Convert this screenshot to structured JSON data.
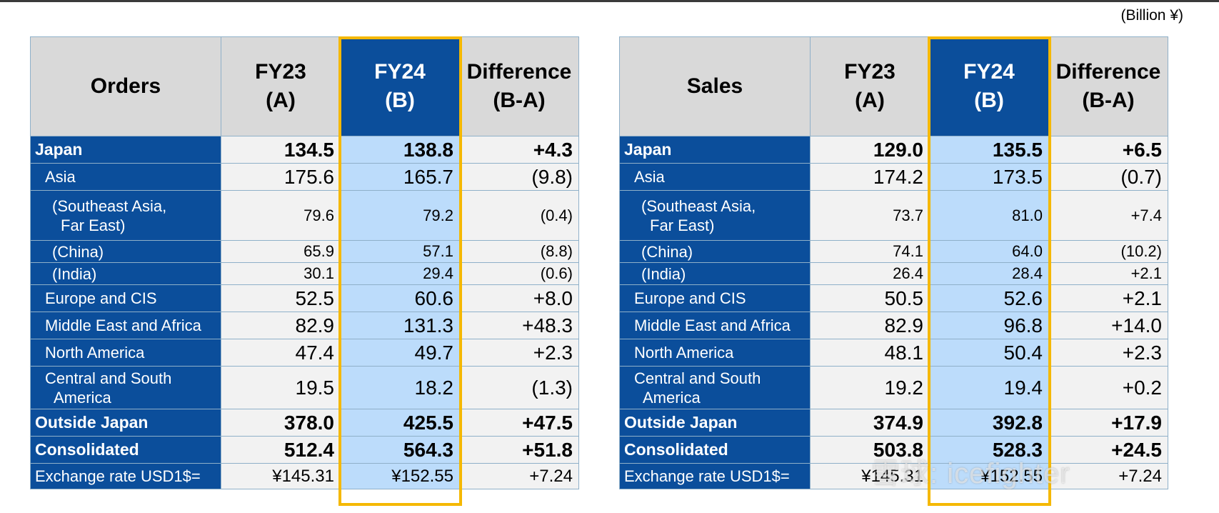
{
  "unit_label": "(Billion ¥)",
  "orders": {
    "header": [
      "Orders",
      "FY23\n(A)",
      "FY24\n(B)",
      "Difference\n(B-A)"
    ],
    "header_lines": [
      [
        "Orders"
      ],
      [
        "FY23",
        "(A)"
      ],
      [
        "FY24",
        "(B)"
      ],
      [
        "Difference",
        "(B-A)"
      ]
    ],
    "rows": [
      {
        "label": "Japan",
        "a": "134.5",
        "b": "138.8",
        "d": "+4.3"
      },
      {
        "label": "Asia",
        "a": "175.6",
        "b": "165.7",
        "d": "(9.8)"
      },
      {
        "label": "(Southeast Asia,\nFar East)",
        "a": "79.6",
        "b": "79.2",
        "d": "(0.4)"
      },
      {
        "label": "(China)",
        "a": "65.9",
        "b": "57.1",
        "d": "(8.8)"
      },
      {
        "label": "(India)",
        "a": "30.1",
        "b": "29.4",
        "d": "(0.6)"
      },
      {
        "label": "Europe and CIS",
        "a": "52.5",
        "b": "60.6",
        "d": "+8.0"
      },
      {
        "label": "Middle East and Africa",
        "a": "82.9",
        "b": "131.3",
        "d": "+48.3"
      },
      {
        "label": "North America",
        "a": "47.4",
        "b": "49.7",
        "d": "+2.3"
      },
      {
        "label": "Central and South\nAmerica",
        "a": "19.5",
        "b": "18.2",
        "d": "(1.3)"
      },
      {
        "label": "Outside Japan",
        "a": "378.0",
        "b": "425.5",
        "d": "+47.5"
      },
      {
        "label": "Consolidated",
        "a": "512.4",
        "b": "564.3",
        "d": "+51.8"
      },
      {
        "label": "Exchange rate USD1$=",
        "a": "¥145.31",
        "b": "¥152.55",
        "d": "+7.24"
      }
    ]
  },
  "sales": {
    "header_lines": [
      [
        "Sales"
      ],
      [
        "FY23",
        "(A)"
      ],
      [
        "FY24",
        "(B)"
      ],
      [
        "Difference",
        "(B-A)"
      ]
    ],
    "rows": [
      {
        "label": "Japan",
        "a": "129.0",
        "b": "135.5",
        "d": "+6.5"
      },
      {
        "label": "Asia",
        "a": "174.2",
        "b": "173.5",
        "d": "(0.7)"
      },
      {
        "label": "(Southeast Asia,\nFar East)",
        "a": "73.7",
        "b": "81.0",
        "d": "+7.4"
      },
      {
        "label": "(China)",
        "a": "74.1",
        "b": "64.0",
        "d": "(10.2)"
      },
      {
        "label": "(India)",
        "a": "26.4",
        "b": "28.4",
        "d": "+2.1"
      },
      {
        "label": "Europe and CIS",
        "a": "50.5",
        "b": "52.6",
        "d": "+2.1"
      },
      {
        "label": "Middle East and Africa",
        "a": "82.9",
        "b": "96.8",
        "d": "+14.0"
      },
      {
        "label": "North America",
        "a": "48.1",
        "b": "50.4",
        "d": "+2.3"
      },
      {
        "label": "Central and South\nAmerica",
        "a": "19.2",
        "b": "19.4",
        "d": "+0.2"
      },
      {
        "label": "Outside Japan",
        "a": "374.9",
        "b": "392.8",
        "d": "+17.9"
      },
      {
        "label": "Consolidated",
        "a": "503.8",
        "b": "528.3",
        "d": "+24.5"
      },
      {
        "label": "Exchange rate USD1$=",
        "a": "¥145.31",
        "b": "¥152.55",
        "d": "+7.24"
      }
    ]
  },
  "watermark": "雪球: icefighter",
  "colors": {
    "label_bg": "#0b4e9b",
    "highlight_bg": "#bcdcfb",
    "frame": "#f5b800",
    "header_bg": "#d9d9d9"
  }
}
